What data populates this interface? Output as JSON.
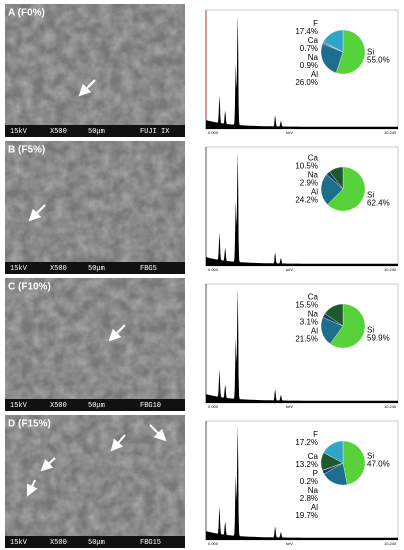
{
  "panels": [
    {
      "label": "A (F0%)",
      "caption": [
        "15kV",
        "X500",
        "50μm",
        "FUJI IX"
      ],
      "spectrum": {
        "x_start": "0.000",
        "x_unit": "keV",
        "x_end": "10.240"
      },
      "chart_data": {
        "type": "pie",
        "categories": [
          "Si",
          "Al",
          "Na",
          "Ca",
          "F"
        ],
        "values": [
          55.0,
          26.0,
          0.9,
          0.7,
          17.4
        ],
        "value_labels": [
          "55.0%",
          "26.0%",
          "0.9%",
          "0.7%",
          "17.4%"
        ],
        "colors": [
          "#58d23a",
          "#1b6f8c",
          "#123f6b",
          "#1d5a2b",
          "#2fa5c8"
        ]
      }
    },
    {
      "label": "B (F5%)",
      "caption": [
        "15kV",
        "X500",
        "50μm",
        "FBG5"
      ],
      "spectrum": {
        "x_start": "0.000",
        "x_unit": "keV",
        "x_end": "10.240"
      },
      "chart_data": {
        "type": "pie",
        "categories": [
          "Si",
          "Al",
          "Na",
          "Ca"
        ],
        "values": [
          62.4,
          24.2,
          2.9,
          10.5
        ],
        "value_labels": [
          "62.4%",
          "24.2%",
          "2.9%",
          "10.5%"
        ],
        "colors": [
          "#58d23a",
          "#1b6f8c",
          "#123f6b",
          "#1d5a2b"
        ]
      }
    },
    {
      "label": "C (F10%)",
      "caption": [
        "15kV",
        "X500",
        "50μm",
        "FBG10"
      ],
      "spectrum": {
        "x_start": "0.000",
        "x_unit": "keV",
        "x_end": "10.240"
      },
      "chart_data": {
        "type": "pie",
        "categories": [
          "Si",
          "Al",
          "Na",
          "Ca"
        ],
        "values": [
          59.9,
          21.5,
          3.1,
          15.5
        ],
        "value_labels": [
          "59.9%",
          "21.5%",
          "3.1%",
          "15.5%"
        ],
        "colors": [
          "#58d23a",
          "#1b6f8c",
          "#123f6b",
          "#1d5a2b"
        ]
      }
    },
    {
      "label": "D (F15%)",
      "caption": [
        "15kV",
        "X500",
        "50μm",
        "FBG15"
      ],
      "spectrum": {
        "x_start": "0.000",
        "x_unit": "keV",
        "x_end": "10.240"
      },
      "chart_data": {
        "type": "pie",
        "categories": [
          "Si",
          "Al",
          "Na",
          "P",
          "Ca",
          "F"
        ],
        "values": [
          47.0,
          19.7,
          2.8,
          0.2,
          13.2,
          17.2
        ],
        "value_labels": [
          "47.0%",
          "19.7%",
          "2.8%",
          "0.2%",
          "13.2%",
          "17.2%"
        ],
        "colors": [
          "#58d23a",
          "#1b6f8c",
          "#123f6b",
          "#7a5a9a",
          "#1d5a2b",
          "#2fa5c8"
        ]
      }
    }
  ]
}
